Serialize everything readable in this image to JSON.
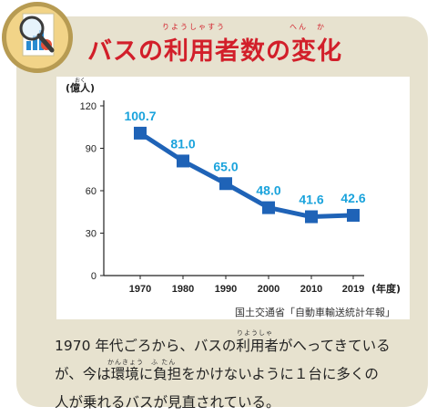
{
  "title": "バスの利用者数の変化",
  "title_ruby": {
    "riyousha": "りようしゃすう",
    "henka": "へん　か"
  },
  "chart_data": {
    "type": "line",
    "x": [
      1970,
      1980,
      1990,
      2000,
      2010,
      2019
    ],
    "values": [
      100.7,
      81.0,
      65.0,
      48.0,
      41.6,
      42.6
    ],
    "data_labels": [
      "100.7",
      "81.0",
      "65.0",
      "48.0",
      "41.6",
      "42.6"
    ],
    "x_tick_labels": [
      "1970",
      "1980",
      "1990",
      "2000",
      "2010",
      "2019"
    ],
    "y_ticks": [
      0,
      30,
      60,
      90,
      120
    ],
    "y_tick_labels": [
      "0",
      "30",
      "60",
      "90",
      "120"
    ],
    "ylim": [
      0,
      120
    ],
    "ylabel": "(億人)",
    "ylabel_ruby": "おく",
    "xlabel": "(年度)",
    "grid": false,
    "line_color": "#1f63b7",
    "marker_color": "#1f63b7",
    "label_color": "#1aa3dc"
  },
  "source": "国土交通省「自動車輸送統計年報」",
  "caption": {
    "line1": "1970 年代ごろから、バスの利用者がへってきている",
    "line2": "が、今は環境に負担をかけないように１台に多くの",
    "line3": "人が乗れるバスが見直されている。",
    "ruby_riyousha": "りようしゃ",
    "ruby_kankyou": "かんきょう",
    "ruby_futan": "ふ たん"
  },
  "colors": {
    "title": "#d21f2a",
    "card_bg": "#e7e2cf",
    "icon_ring": "#b79b52",
    "icon_fill": "#f2d488"
  }
}
